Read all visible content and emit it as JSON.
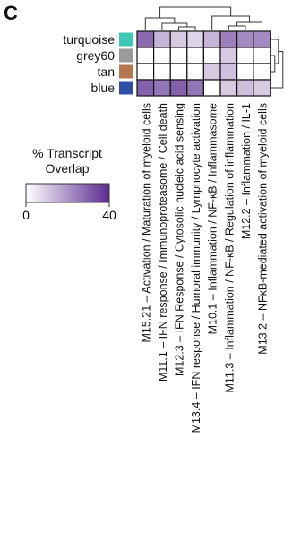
{
  "panel_label": "C",
  "chart_data": {
    "type": "heatmap",
    "title": "",
    "row_labels": [
      "turquoise",
      "grey60",
      "tan",
      "blue"
    ],
    "row_colors": [
      "#3cc8b4",
      "#9a9a9a",
      "#b5774f",
      "#2f4fa6"
    ],
    "columns": [
      "M15.21 – Activation / Maturation of myeloid cells",
      "M11.1 – IFN response / Immunoproteasome / Cell death",
      "M12.3 – IFN Response / Cytosolic nucleic acid sensing",
      "M13.4 – IFN response / Humoral immunity / Lymphocyte activation",
      "M10.1 – Inflammation / NF-κB / Inflammasome",
      "M11.3 – Inflammation / NF-κB / Regulation of inflammation",
      "M12.2 – Inflammation / IL-1",
      "M13.2 – NFκB-mediated activation of myeloid cells"
    ],
    "values": [
      [
        28,
        14,
        10,
        8,
        14,
        24,
        22,
        22
      ],
      [
        0,
        0,
        0,
        0,
        0,
        10,
        0,
        0
      ],
      [
        0,
        0,
        0,
        0,
        10,
        12,
        0,
        0
      ],
      [
        30,
        26,
        30,
        26,
        0,
        10,
        12,
        10
      ]
    ],
    "color_scale": {
      "min": 0,
      "max": 40,
      "low_color": "#ffffff",
      "high_color": "#5b2a90"
    },
    "legend": {
      "title_line1": "% Transcript",
      "title_line2": "Overlap",
      "min_label": "0",
      "max_label": "40"
    },
    "column_dendrogram": true,
    "row_dendrogram": true
  }
}
